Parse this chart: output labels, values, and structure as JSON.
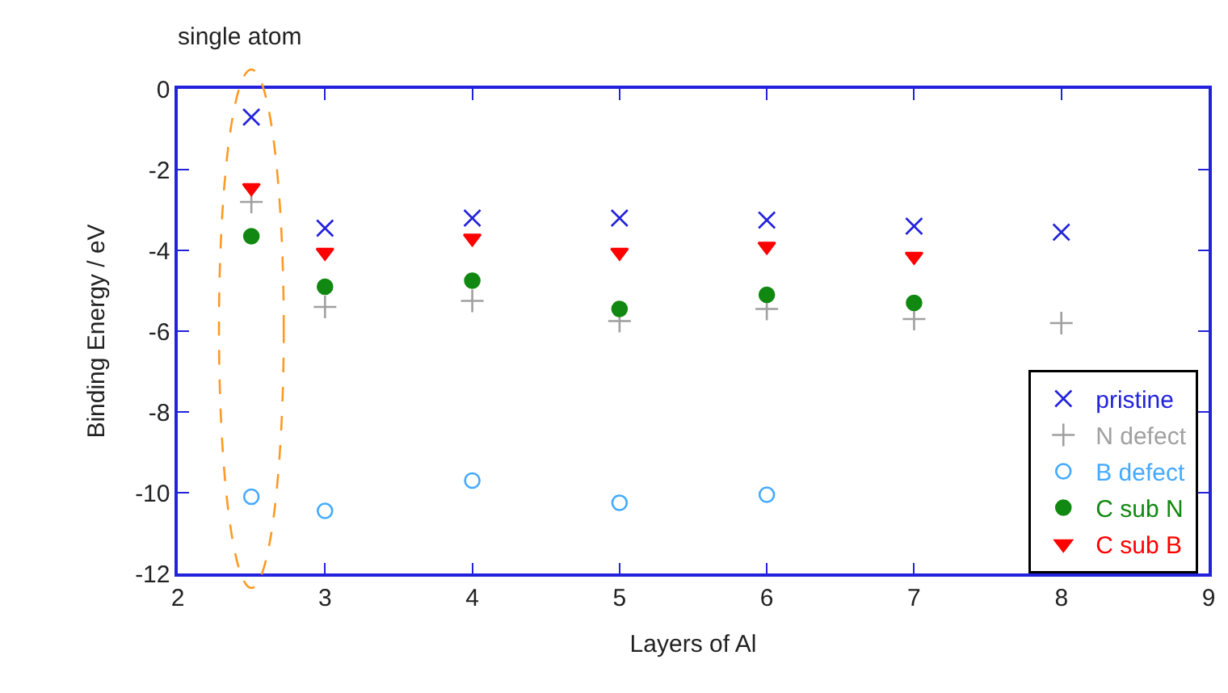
{
  "chart_data": {
    "type": "scatter",
    "title": "single atom",
    "xlabel": "Layers of Al",
    "ylabel": "Binding Energy / eV",
    "xlim": [
      2,
      9
    ],
    "xticks": [
      2,
      3,
      4,
      5,
      6,
      7,
      8,
      9
    ],
    "ylim": [
      -12,
      0
    ],
    "yticks": [
      -12,
      -10,
      -8,
      -6,
      -4,
      -2,
      0
    ],
    "legend": "bottom right",
    "series": [
      {
        "name": "pristine",
        "color": "#2222dd",
        "marker": "x",
        "x": [
          2.5,
          3,
          4,
          5,
          6,
          7,
          8
        ],
        "values": [
          -0.7,
          -3.45,
          -3.2,
          -3.2,
          -3.25,
          -3.4,
          -3.55
        ]
      },
      {
        "name": "N defect",
        "color": "#a0a0a0",
        "marker": "cross",
        "x": [
          2.5,
          3,
          4,
          5,
          6,
          7,
          8
        ],
        "values": [
          -2.8,
          -5.4,
          -5.25,
          -5.75,
          -5.45,
          -5.7,
          -5.8
        ]
      },
      {
        "name": "B defect",
        "color": "#44aaff",
        "marker": "circle-open",
        "x": [
          2.5,
          3,
          4,
          5,
          6
        ],
        "values": [
          -10.1,
          -10.45,
          -9.7,
          -10.25,
          -10.05
        ]
      },
      {
        "name": "C sub N",
        "color": "#118811",
        "marker": "circle",
        "x": [
          2.5,
          3,
          4,
          5,
          6,
          7
        ],
        "values": [
          -3.65,
          -4.9,
          -4.75,
          -5.45,
          -5.1,
          -5.3
        ]
      },
      {
        "name": "C sub B",
        "color": "#ff0000",
        "marker": "triangle",
        "x": [
          2.5,
          3,
          4,
          5,
          6,
          7
        ],
        "values": [
          -2.45,
          -4.05,
          -3.7,
          -4.05,
          -3.9,
          -4.15
        ]
      }
    ]
  }
}
